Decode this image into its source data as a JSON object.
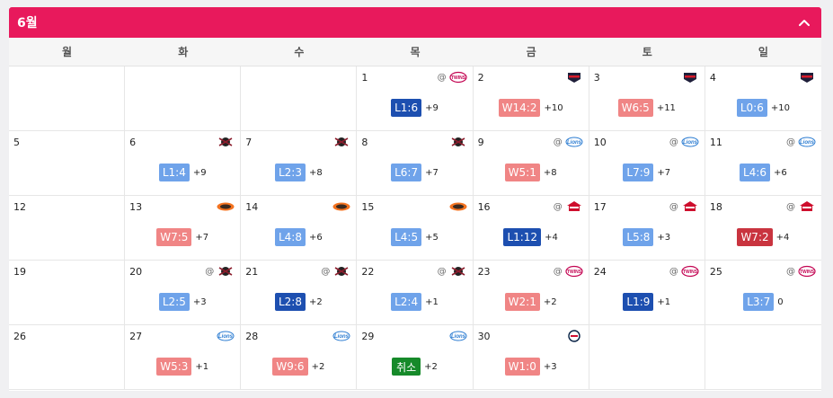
{
  "header": {
    "title": "6월"
  },
  "weekdays": [
    "월",
    "화",
    "수",
    "목",
    "금",
    "토",
    "일"
  ],
  "colors": {
    "header": "#e8195c",
    "win_strong": "#c9343f",
    "win_light": "#f08585",
    "loss_strong": "#1d4fb0",
    "loss_light": "#6fa3ea",
    "cancel": "#168a2a"
  },
  "cells": [
    {},
    {},
    {},
    {
      "day": "1",
      "at": "@",
      "opponent": "twins",
      "result": "L1:6",
      "style": "loss-strong",
      "gb": "+9"
    },
    {
      "day": "2",
      "at": "",
      "opponent": "tigers",
      "result": "W14:2",
      "style": "win-light",
      "gb": "+10"
    },
    {
      "day": "3",
      "at": "",
      "opponent": "tigers",
      "result": "W6:5",
      "style": "win-light",
      "gb": "+11"
    },
    {
      "day": "4",
      "at": "",
      "opponent": "tigers",
      "result": "L0:6",
      "style": "loss-light",
      "gb": "+10"
    },
    {
      "day": "5"
    },
    {
      "day": "6",
      "at": "",
      "opponent": "heroes",
      "result": "L1:4",
      "style": "loss-light",
      "gb": "+9"
    },
    {
      "day": "7",
      "at": "",
      "opponent": "heroes",
      "result": "L2:3",
      "style": "loss-light",
      "gb": "+8"
    },
    {
      "day": "8",
      "at": "",
      "opponent": "heroes",
      "result": "L6:7",
      "style": "loss-light",
      "gb": "+7"
    },
    {
      "day": "9",
      "at": "@",
      "opponent": "lions",
      "result": "W5:1",
      "style": "win-light",
      "gb": "+8"
    },
    {
      "day": "10",
      "at": "@",
      "opponent": "lions",
      "result": "L7:9",
      "style": "loss-light",
      "gb": "+7"
    },
    {
      "day": "11",
      "at": "@",
      "opponent": "lions",
      "result": "L4:6",
      "style": "loss-light",
      "gb": "+6"
    },
    {
      "day": "12"
    },
    {
      "day": "13",
      "at": "",
      "opponent": "eagles",
      "result": "W7:5",
      "style": "win-light",
      "gb": "+7"
    },
    {
      "day": "14",
      "at": "",
      "opponent": "eagles",
      "result": "L4:8",
      "style": "loss-light",
      "gb": "+6"
    },
    {
      "day": "15",
      "at": "",
      "opponent": "eagles",
      "result": "L4:5",
      "style": "loss-light",
      "gb": "+5"
    },
    {
      "day": "16",
      "at": "@",
      "opponent": "landers",
      "result": "L1:12",
      "style": "loss-strong",
      "gb": "+4"
    },
    {
      "day": "17",
      "at": "@",
      "opponent": "landers",
      "result": "L5:8",
      "style": "loss-light",
      "gb": "+3"
    },
    {
      "day": "18",
      "at": "@",
      "opponent": "landers",
      "result": "W7:2",
      "style": "win-strong",
      "gb": "+4"
    },
    {
      "day": "19"
    },
    {
      "day": "20",
      "at": "@",
      "opponent": "heroes",
      "result": "L2:5",
      "style": "loss-light",
      "gb": "+3"
    },
    {
      "day": "21",
      "at": "@",
      "opponent": "heroes",
      "result": "L2:8",
      "style": "loss-strong",
      "gb": "+2"
    },
    {
      "day": "22",
      "at": "@",
      "opponent": "heroes",
      "result": "L2:4",
      "style": "loss-light",
      "gb": "+1"
    },
    {
      "day": "23",
      "at": "@",
      "opponent": "twins",
      "result": "W2:1",
      "style": "win-light",
      "gb": "+2"
    },
    {
      "day": "24",
      "at": "@",
      "opponent": "twins",
      "result": "L1:9",
      "style": "loss-strong",
      "gb": "+1"
    },
    {
      "day": "25",
      "at": "@",
      "opponent": "twins",
      "result": "L3:7",
      "style": "loss-light",
      "gb": "0"
    },
    {
      "day": "26"
    },
    {
      "day": "27",
      "at": "",
      "opponent": "lions",
      "result": "W5:3",
      "style": "win-light",
      "gb": "+1"
    },
    {
      "day": "28",
      "at": "",
      "opponent": "lions",
      "result": "W9:6",
      "style": "win-light",
      "gb": "+2"
    },
    {
      "day": "29",
      "at": "",
      "opponent": "lions",
      "result": "취소",
      "style": "cancel",
      "gb": "+2"
    },
    {
      "day": "30",
      "at": "",
      "opponent": "giants",
      "result": "W1:0",
      "style": "win-light",
      "gb": "+3"
    },
    {},
    {}
  ]
}
